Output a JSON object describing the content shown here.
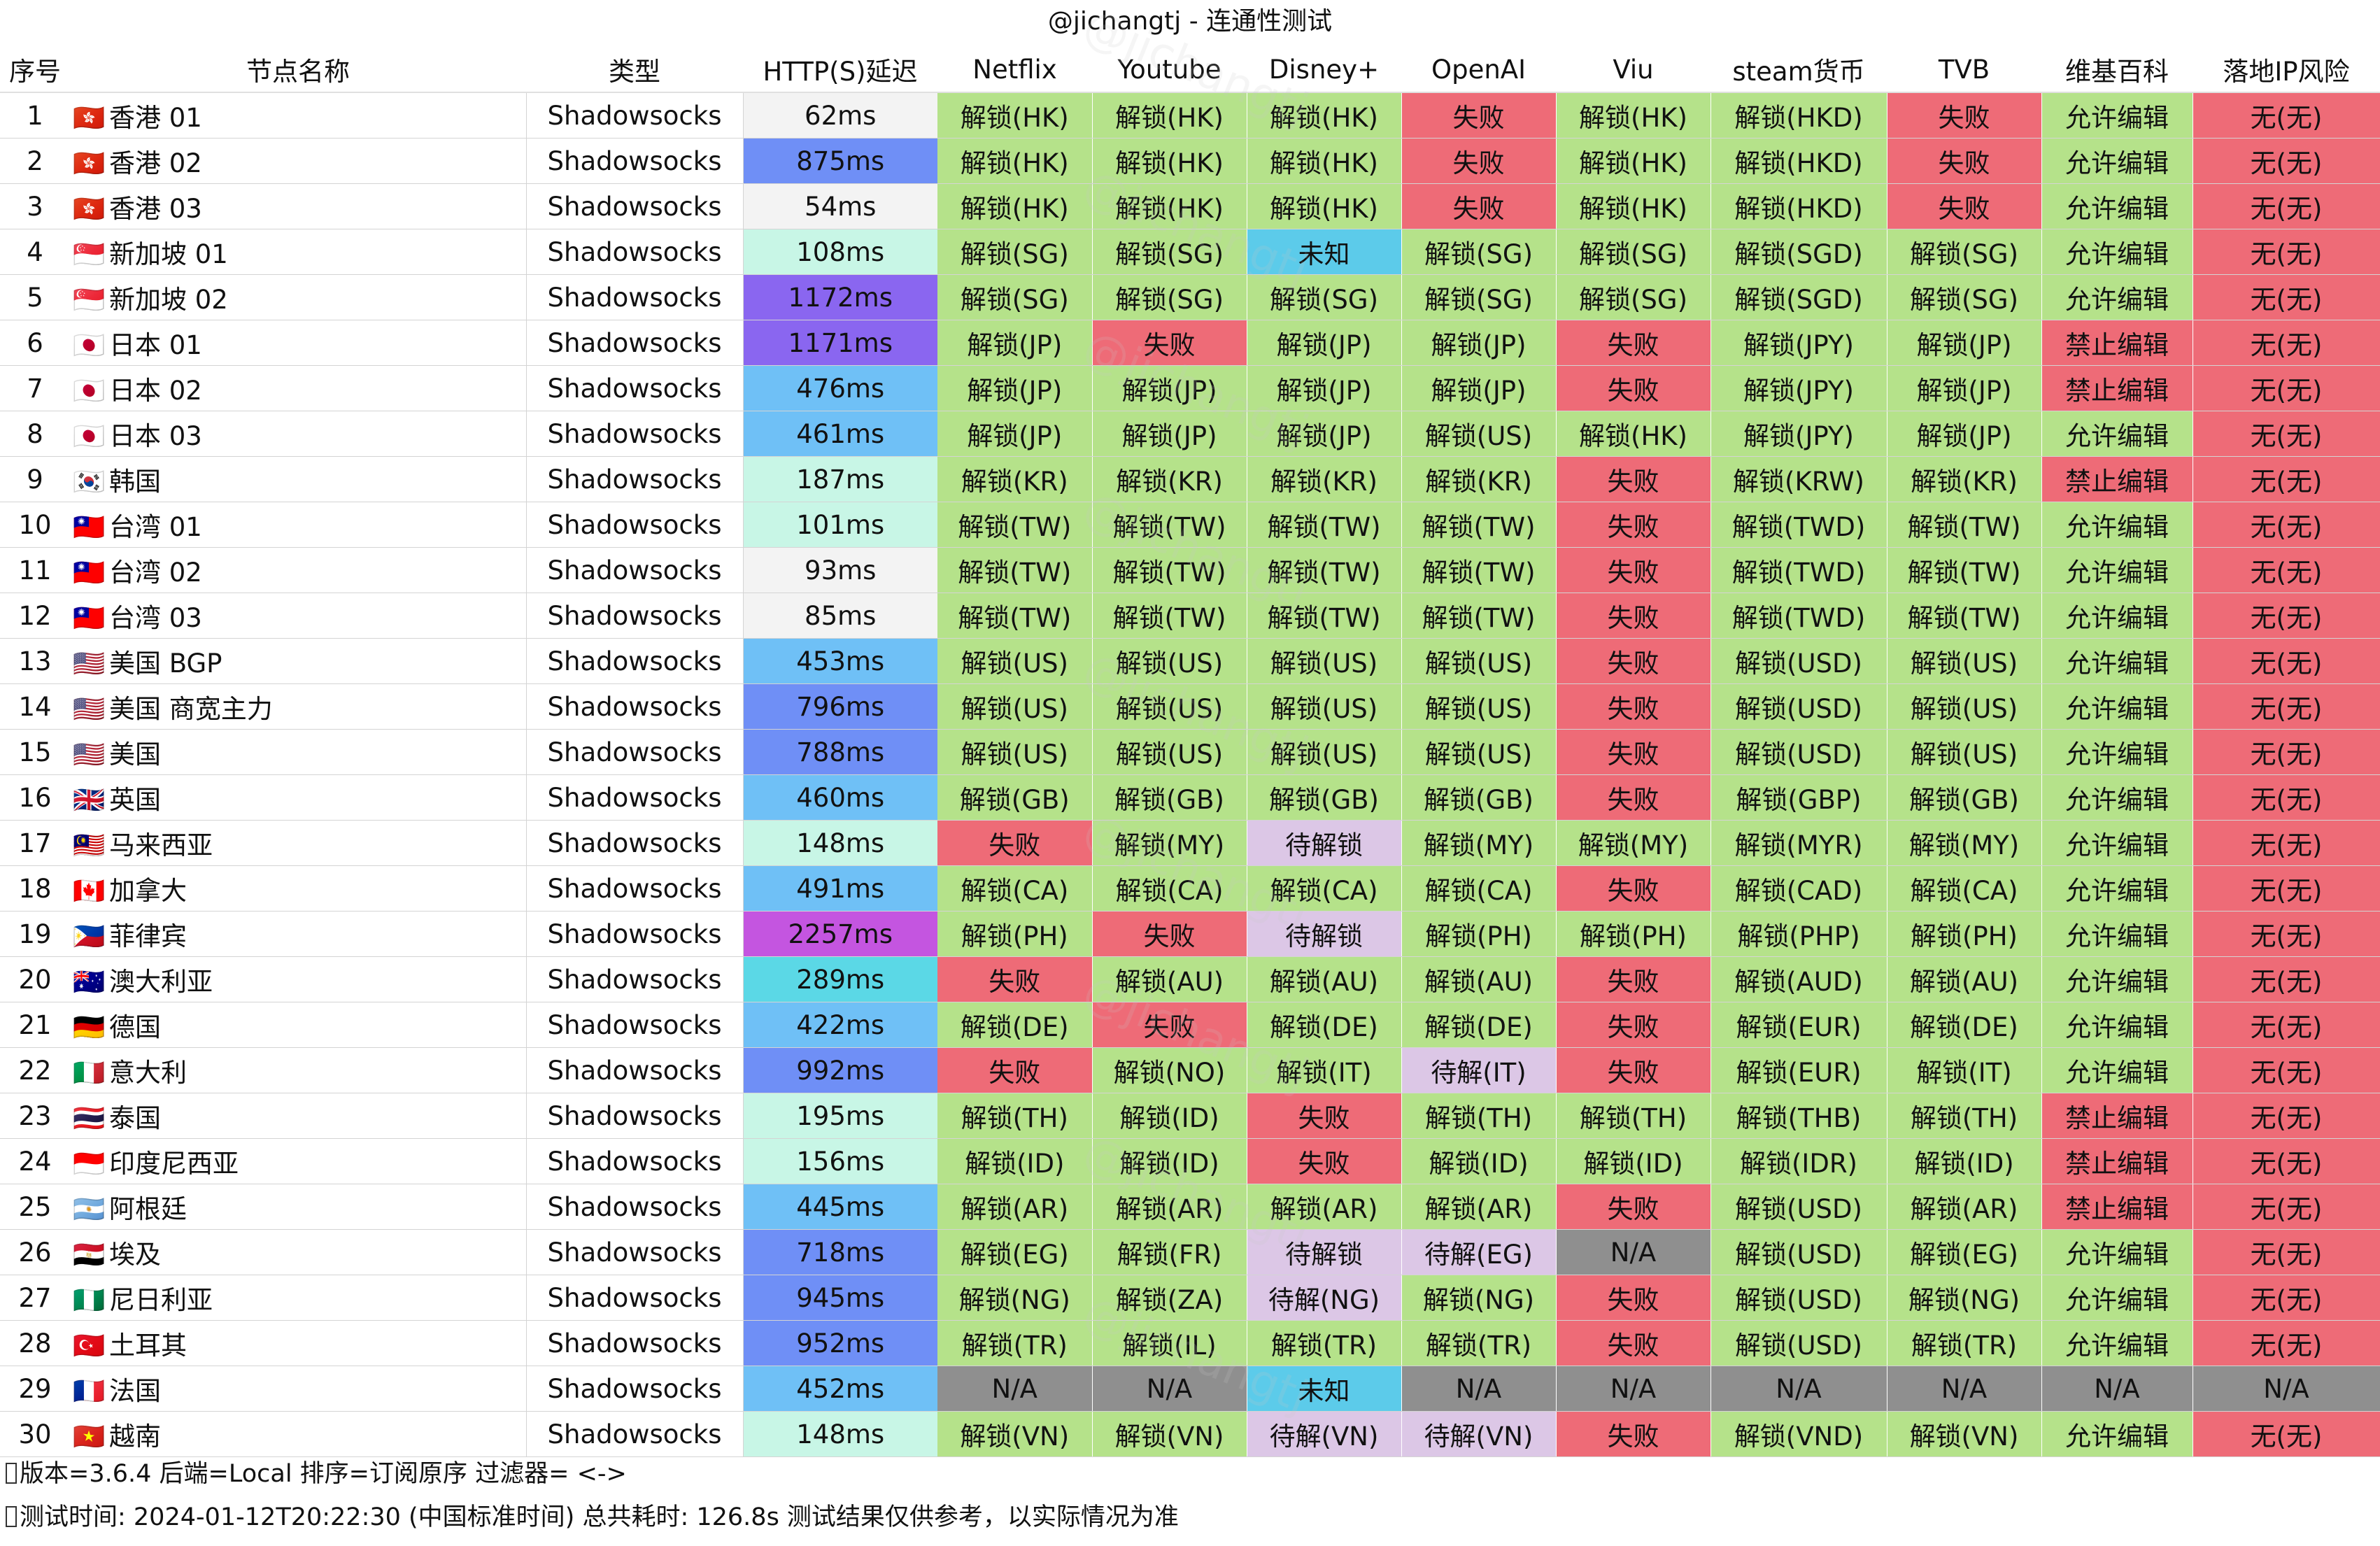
{
  "title": "@jichangtj - 连通性测试",
  "watermark": "@jichangtj",
  "headers": [
    "序号",
    "节点名称",
    "类型",
    "HTTP(S)延迟",
    "Netflix",
    "Youtube",
    "Disney+",
    "OpenAI",
    "Viu",
    "steam货币",
    "TVB",
    "维基百科",
    "落地IP风险"
  ],
  "colors": {
    "unlock": "#b5e28a",
    "fail": "#ee6b77",
    "unknown": "#5ccbea",
    "pending": "#dcc7e6",
    "na": "#8f8f8f"
  },
  "rows": [
    {
      "seq": "1",
      "flag": "🇭🇰",
      "name": "香港 01",
      "type": "Shadowsocks",
      "latency": "62ms",
      "latency_color": "#f3f3f3",
      "cells": [
        "解锁(HK)",
        "解锁(HK)",
        "解锁(HK)",
        "失败",
        "解锁(HK)",
        "解锁(HKD)",
        "失败",
        "允许编辑",
        "无(无)"
      ]
    },
    {
      "seq": "2",
      "flag": "🇭🇰",
      "name": "香港 02",
      "type": "Shadowsocks",
      "latency": "875ms",
      "latency_color": "#6f8ff6",
      "cells": [
        "解锁(HK)",
        "解锁(HK)",
        "解锁(HK)",
        "失败",
        "解锁(HK)",
        "解锁(HKD)",
        "失败",
        "允许编辑",
        "无(无)"
      ]
    },
    {
      "seq": "3",
      "flag": "🇭🇰",
      "name": "香港 03",
      "type": "Shadowsocks",
      "latency": "54ms",
      "latency_color": "#f3f3f3",
      "cells": [
        "解锁(HK)",
        "解锁(HK)",
        "解锁(HK)",
        "失败",
        "解锁(HK)",
        "解锁(HKD)",
        "失败",
        "允许编辑",
        "无(无)"
      ]
    },
    {
      "seq": "4",
      "flag": "🇸🇬",
      "name": "新加坡 01",
      "type": "Shadowsocks",
      "latency": "108ms",
      "latency_color": "#c8f6e6",
      "cells": [
        "解锁(SG)",
        "解锁(SG)",
        "未知",
        "解锁(SG)",
        "解锁(SG)",
        "解锁(SGD)",
        "解锁(SG)",
        "允许编辑",
        "无(无)"
      ]
    },
    {
      "seq": "5",
      "flag": "🇸🇬",
      "name": "新加坡 02",
      "type": "Shadowsocks",
      "latency": "1172ms",
      "latency_color": "#8a66f0",
      "cells": [
        "解锁(SG)",
        "解锁(SG)",
        "解锁(SG)",
        "解锁(SG)",
        "解锁(SG)",
        "解锁(SGD)",
        "解锁(SG)",
        "允许编辑",
        "无(无)"
      ]
    },
    {
      "seq": "6",
      "flag": "🇯🇵",
      "name": "日本 01",
      "type": "Shadowsocks",
      "latency": "1171ms",
      "latency_color": "#8a66f0",
      "cells": [
        "解锁(JP)",
        "失败",
        "解锁(JP)",
        "解锁(JP)",
        "失败",
        "解锁(JPY)",
        "解锁(JP)",
        "禁止编辑",
        "无(无)"
      ]
    },
    {
      "seq": "7",
      "flag": "🇯🇵",
      "name": "日本 02",
      "type": "Shadowsocks",
      "latency": "476ms",
      "latency_color": "#6fc0f6",
      "cells": [
        "解锁(JP)",
        "解锁(JP)",
        "解锁(JP)",
        "解锁(JP)",
        "失败",
        "解锁(JPY)",
        "解锁(JP)",
        "禁止编辑",
        "无(无)"
      ]
    },
    {
      "seq": "8",
      "flag": "🇯🇵",
      "name": "日本 03",
      "type": "Shadowsocks",
      "latency": "461ms",
      "latency_color": "#6fc0f6",
      "cells": [
        "解锁(JP)",
        "解锁(JP)",
        "解锁(JP)",
        "解锁(US)",
        "解锁(HK)",
        "解锁(JPY)",
        "解锁(JP)",
        "允许编辑",
        "无(无)"
      ]
    },
    {
      "seq": "9",
      "flag": "🇰🇷",
      "name": "韩国",
      "type": "Shadowsocks",
      "latency": "187ms",
      "latency_color": "#c8f6e6",
      "cells": [
        "解锁(KR)",
        "解锁(KR)",
        "解锁(KR)",
        "解锁(KR)",
        "失败",
        "解锁(KRW)",
        "解锁(KR)",
        "禁止编辑",
        "无(无)"
      ]
    },
    {
      "seq": "10",
      "flag": "🇹🇼",
      "name": "台湾 01",
      "type": "Shadowsocks",
      "latency": "101ms",
      "latency_color": "#c8f6e6",
      "cells": [
        "解锁(TW)",
        "解锁(TW)",
        "解锁(TW)",
        "解锁(TW)",
        "失败",
        "解锁(TWD)",
        "解锁(TW)",
        "允许编辑",
        "无(无)"
      ]
    },
    {
      "seq": "11",
      "flag": "🇹🇼",
      "name": "台湾 02",
      "type": "Shadowsocks",
      "latency": "93ms",
      "latency_color": "#f3f3f3",
      "cells": [
        "解锁(TW)",
        "解锁(TW)",
        "解锁(TW)",
        "解锁(TW)",
        "失败",
        "解锁(TWD)",
        "解锁(TW)",
        "允许编辑",
        "无(无)"
      ]
    },
    {
      "seq": "12",
      "flag": "🇹🇼",
      "name": "台湾 03",
      "type": "Shadowsocks",
      "latency": "85ms",
      "latency_color": "#f3f3f3",
      "cells": [
        "解锁(TW)",
        "解锁(TW)",
        "解锁(TW)",
        "解锁(TW)",
        "失败",
        "解锁(TWD)",
        "解锁(TW)",
        "允许编辑",
        "无(无)"
      ]
    },
    {
      "seq": "13",
      "flag": "🇺🇸",
      "name": "美国 BGP",
      "type": "Shadowsocks",
      "latency": "453ms",
      "latency_color": "#6fc0f6",
      "cells": [
        "解锁(US)",
        "解锁(US)",
        "解锁(US)",
        "解锁(US)",
        "失败",
        "解锁(USD)",
        "解锁(US)",
        "允许编辑",
        "无(无)"
      ]
    },
    {
      "seq": "14",
      "flag": "🇺🇸",
      "name": "美国 商宽主力",
      "type": "Shadowsocks",
      "latency": "796ms",
      "latency_color": "#6f8ff6",
      "cells": [
        "解锁(US)",
        "解锁(US)",
        "解锁(US)",
        "解锁(US)",
        "失败",
        "解锁(USD)",
        "解锁(US)",
        "允许编辑",
        "无(无)"
      ]
    },
    {
      "seq": "15",
      "flag": "🇺🇸",
      "name": "美国",
      "type": "Shadowsocks",
      "latency": "788ms",
      "latency_color": "#6f8ff6",
      "cells": [
        "解锁(US)",
        "解锁(US)",
        "解锁(US)",
        "解锁(US)",
        "失败",
        "解锁(USD)",
        "解锁(US)",
        "允许编辑",
        "无(无)"
      ]
    },
    {
      "seq": "16",
      "flag": "🇬🇧",
      "name": "英国",
      "type": "Shadowsocks",
      "latency": "460ms",
      "latency_color": "#6fc0f6",
      "cells": [
        "解锁(GB)",
        "解锁(GB)",
        "解锁(GB)",
        "解锁(GB)",
        "失败",
        "解锁(GBP)",
        "解锁(GB)",
        "允许编辑",
        "无(无)"
      ]
    },
    {
      "seq": "17",
      "flag": "🇲🇾",
      "name": "马来西亚",
      "type": "Shadowsocks",
      "latency": "148ms",
      "latency_color": "#c8f6e6",
      "cells": [
        "失败",
        "解锁(MY)",
        "待解锁",
        "解锁(MY)",
        "解锁(MY)",
        "解锁(MYR)",
        "解锁(MY)",
        "允许编辑",
        "无(无)"
      ]
    },
    {
      "seq": "18",
      "flag": "🇨🇦",
      "name": "加拿大",
      "type": "Shadowsocks",
      "latency": "491ms",
      "latency_color": "#6fc0f6",
      "cells": [
        "解锁(CA)",
        "解锁(CA)",
        "解锁(CA)",
        "解锁(CA)",
        "失败",
        "解锁(CAD)",
        "解锁(CA)",
        "允许编辑",
        "无(无)"
      ]
    },
    {
      "seq": "19",
      "flag": "🇵🇭",
      "name": "菲律宾",
      "type": "Shadowsocks",
      "latency": "2257ms",
      "latency_color": "#c455e0",
      "cells": [
        "解锁(PH)",
        "失败",
        "待解锁",
        "解锁(PH)",
        "解锁(PH)",
        "解锁(PHP)",
        "解锁(PH)",
        "允许编辑",
        "无(无)"
      ]
    },
    {
      "seq": "20",
      "flag": "🇦🇺",
      "name": "澳大利亚",
      "type": "Shadowsocks",
      "latency": "289ms",
      "latency_color": "#5bd8e6",
      "cells": [
        "失败",
        "解锁(AU)",
        "解锁(AU)",
        "解锁(AU)",
        "失败",
        "解锁(AUD)",
        "解锁(AU)",
        "允许编辑",
        "无(无)"
      ]
    },
    {
      "seq": "21",
      "flag": "🇩🇪",
      "name": "德国",
      "type": "Shadowsocks",
      "latency": "422ms",
      "latency_color": "#6fc0f6",
      "cells": [
        "解锁(DE)",
        "失败",
        "解锁(DE)",
        "解锁(DE)",
        "失败",
        "解锁(EUR)",
        "解锁(DE)",
        "允许编辑",
        "无(无)"
      ]
    },
    {
      "seq": "22",
      "flag": "🇮🇹",
      "name": "意大利",
      "type": "Shadowsocks",
      "latency": "992ms",
      "latency_color": "#6f8ff6",
      "cells": [
        "失败",
        "解锁(NO)",
        "解锁(IT)",
        "待解(IT)",
        "失败",
        "解锁(EUR)",
        "解锁(IT)",
        "允许编辑",
        "无(无)"
      ]
    },
    {
      "seq": "23",
      "flag": "🇹🇭",
      "name": "泰国",
      "type": "Shadowsocks",
      "latency": "195ms",
      "latency_color": "#c8f6e6",
      "cells": [
        "解锁(TH)",
        "解锁(ID)",
        "失败",
        "解锁(TH)",
        "解锁(TH)",
        "解锁(THB)",
        "解锁(TH)",
        "禁止编辑",
        "无(无)"
      ]
    },
    {
      "seq": "24",
      "flag": "🇮🇩",
      "name": "印度尼西亚",
      "type": "Shadowsocks",
      "latency": "156ms",
      "latency_color": "#c8f6e6",
      "cells": [
        "解锁(ID)",
        "解锁(ID)",
        "失败",
        "解锁(ID)",
        "解锁(ID)",
        "解锁(IDR)",
        "解锁(ID)",
        "禁止编辑",
        "无(无)"
      ]
    },
    {
      "seq": "25",
      "flag": "🇦🇷",
      "name": "阿根廷",
      "type": "Shadowsocks",
      "latency": "445ms",
      "latency_color": "#6fc0f6",
      "cells": [
        "解锁(AR)",
        "解锁(AR)",
        "解锁(AR)",
        "解锁(AR)",
        "失败",
        "解锁(USD)",
        "解锁(AR)",
        "禁止编辑",
        "无(无)"
      ]
    },
    {
      "seq": "26",
      "flag": "🇪🇬",
      "name": "埃及",
      "type": "Shadowsocks",
      "latency": "718ms",
      "latency_color": "#6f8ff6",
      "cells": [
        "解锁(EG)",
        "解锁(FR)",
        "待解锁",
        "待解(EG)",
        "N/A",
        "解锁(USD)",
        "解锁(EG)",
        "允许编辑",
        "无(无)"
      ]
    },
    {
      "seq": "27",
      "flag": "🇳🇬",
      "name": "尼日利亚",
      "type": "Shadowsocks",
      "latency": "945ms",
      "latency_color": "#6f8ff6",
      "cells": [
        "解锁(NG)",
        "解锁(ZA)",
        "待解(NG)",
        "解锁(NG)",
        "失败",
        "解锁(USD)",
        "解锁(NG)",
        "允许编辑",
        "无(无)"
      ]
    },
    {
      "seq": "28",
      "flag": "🇹🇷",
      "name": "土耳其",
      "type": "Shadowsocks",
      "latency": "952ms",
      "latency_color": "#6f8ff6",
      "cells": [
        "解锁(TR)",
        "解锁(IL)",
        "解锁(TR)",
        "解锁(TR)",
        "失败",
        "解锁(USD)",
        "解锁(TR)",
        "允许编辑",
        "无(无)"
      ]
    },
    {
      "seq": "29",
      "flag": "🇫🇷",
      "name": "法国",
      "type": "Shadowsocks",
      "latency": "452ms",
      "latency_color": "#6fc0f6",
      "cells": [
        "N/A",
        "N/A",
        "未知",
        "N/A",
        "N/A",
        "N/A",
        "N/A",
        "N/A",
        "N/A"
      ]
    },
    {
      "seq": "30",
      "flag": "🇻🇳",
      "name": "越南",
      "type": "Shadowsocks",
      "latency": "148ms",
      "latency_color": "#c8f6e6",
      "cells": [
        "解锁(VN)",
        "解锁(VN)",
        "待解(VN)",
        "待解(VN)",
        "失败",
        "解锁(VND)",
        "解锁(VN)",
        "允许编辑",
        "无(无)"
      ]
    }
  ],
  "footer": {
    "line1": "版本=3.6.4  后端=Local  排序=订阅原序  过滤器= <->",
    "line2": "测试时间: 2024-01-12T20:22:30 (中国标准时间) 总共耗时: 126.8s 测试结果仅供参考，以实际情况为准"
  }
}
